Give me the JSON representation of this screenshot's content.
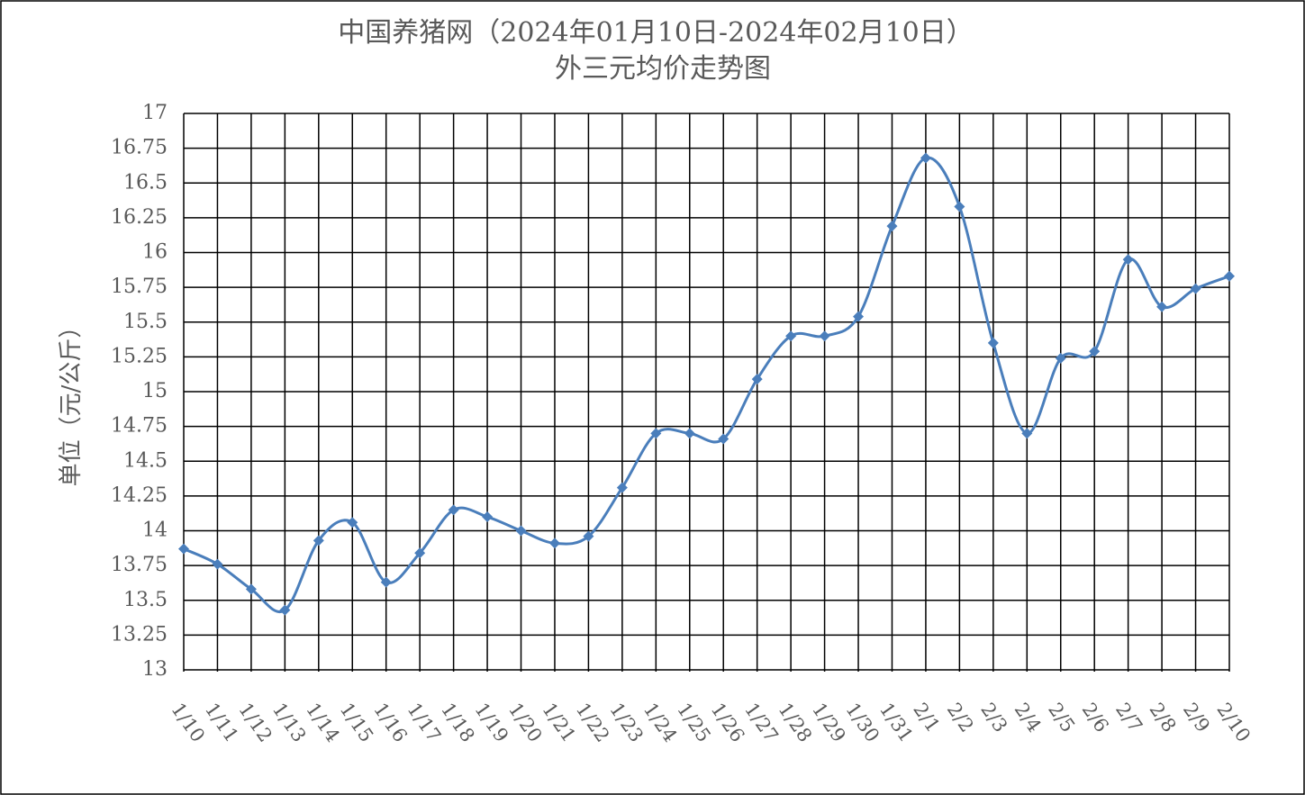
{
  "chart_data": {
    "type": "line",
    "title": "中国养猪网（2024年01月10日-2024年02月10日）",
    "subtitle": "外三元均价走势图",
    "y_label": "单位（元/公斤）",
    "categories": [
      "1/10",
      "1/11",
      "1/12",
      "1/13",
      "1/14",
      "1/15",
      "1/16",
      "1/17",
      "1/18",
      "1/19",
      "1/20",
      "1/21",
      "1/22",
      "1/23",
      "1/24",
      "1/25",
      "1/26",
      "1/27",
      "1/28",
      "1/29",
      "1/30",
      "1/31",
      "2/1",
      "2/2",
      "2/3",
      "2/4",
      "2/5",
      "2/6",
      "2/7",
      "2/8",
      "2/9",
      "2/10"
    ],
    "values": [
      13.87,
      13.76,
      13.58,
      13.43,
      13.93,
      14.06,
      13.63,
      13.84,
      14.15,
      14.1,
      14.0,
      13.91,
      13.96,
      14.31,
      14.7,
      14.7,
      14.66,
      15.09,
      15.4,
      15.4,
      15.54,
      16.19,
      16.68,
      16.33,
      15.35,
      14.7,
      15.24,
      15.29,
      15.95,
      15.61,
      15.74,
      15.83
    ],
    "color": "#4a7ebb",
    "ylim": [
      13,
      17
    ],
    "yticks": [
      13,
      13.25,
      13.5,
      13.75,
      14,
      14.25,
      14.5,
      14.75,
      15,
      15.25,
      15.5,
      15.75,
      16,
      16.25,
      16.5,
      16.75,
      17
    ],
    "grid": true
  }
}
